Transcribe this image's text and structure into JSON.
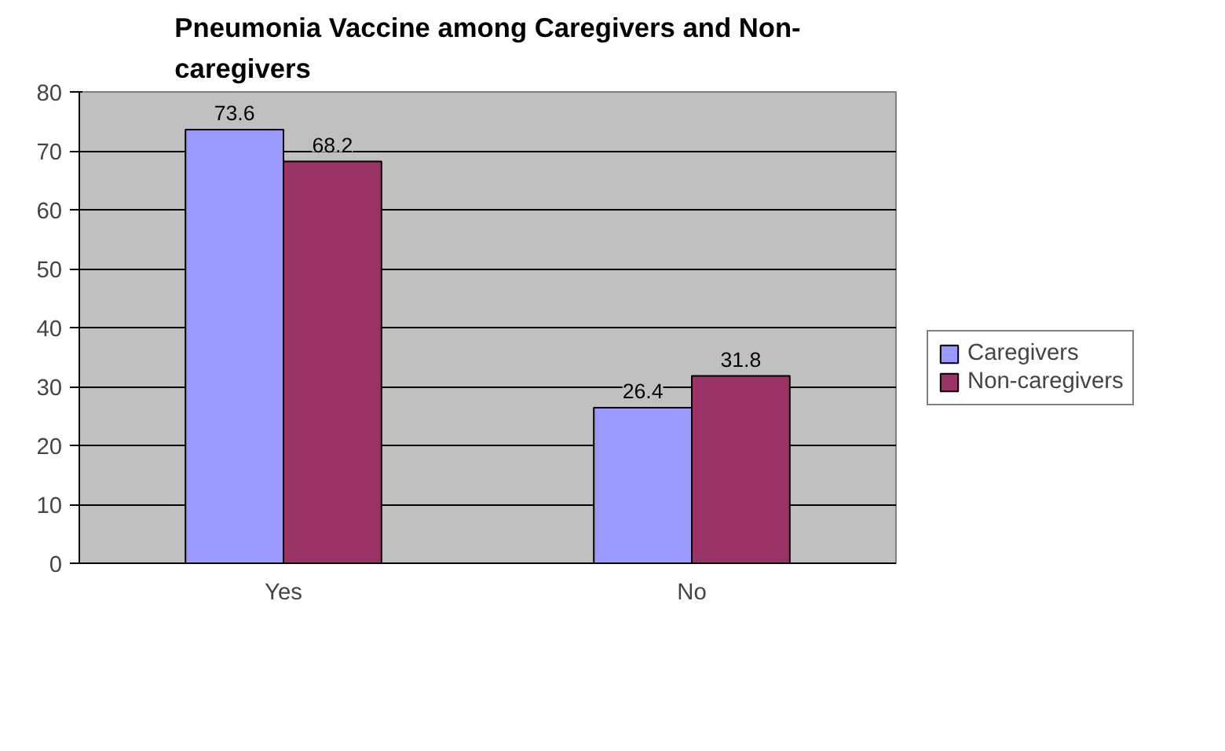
{
  "chart_data": {
    "type": "bar",
    "title": "Pneumonia Vaccine among Caregivers and Non-caregivers",
    "categories": [
      "Yes",
      "No"
    ],
    "series": [
      {
        "name": "Caregivers",
        "color": "#9999ff",
        "values": [
          73.6,
          26.4
        ]
      },
      {
        "name": "Non-caregivers",
        "color": "#993366",
        "values": [
          68.2,
          31.8
        ]
      }
    ],
    "ylim": [
      0,
      80
    ],
    "yticks": [
      0,
      10,
      20,
      30,
      40,
      50,
      60,
      70,
      80
    ],
    "grid": "y",
    "legend": "right",
    "data_labels": true
  }
}
